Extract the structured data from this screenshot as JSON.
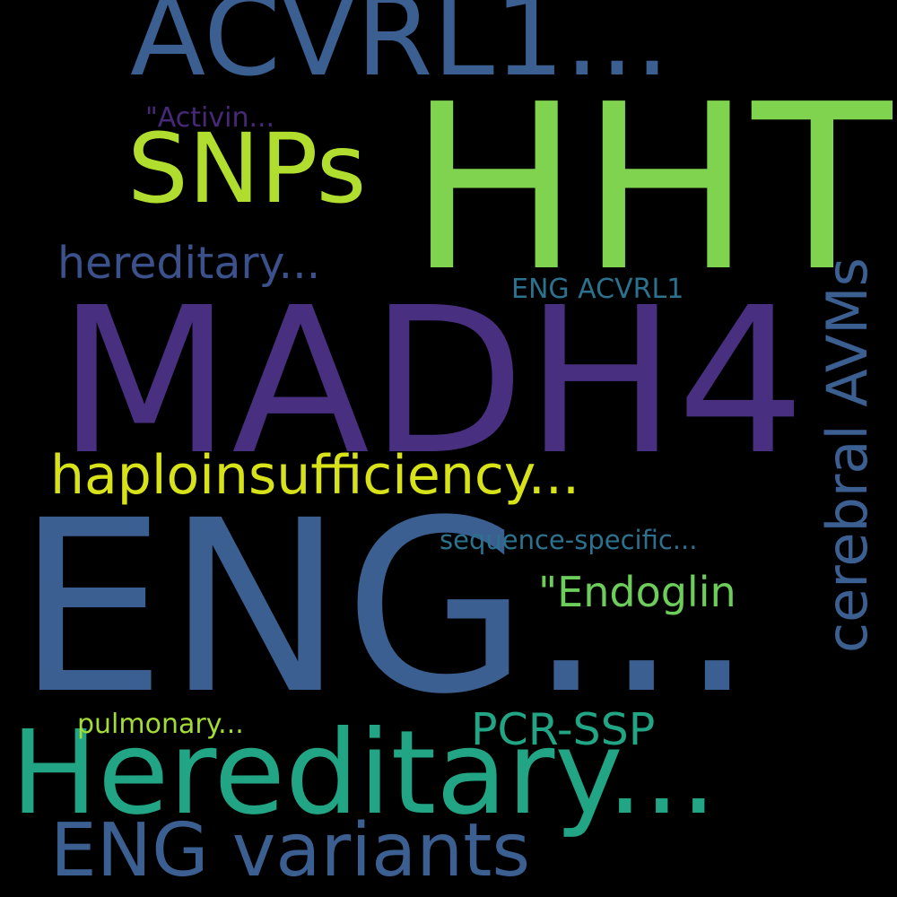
{
  "words": [
    {
      "text": "ENG...",
      "color": "#3b5f91"
    },
    {
      "text": "MADH4",
      "color": "#482f7f"
    },
    {
      "text": "HHT",
      "color": "#7fd34e"
    },
    {
      "text": "Hereditary...",
      "color": "#22a584"
    },
    {
      "text": "ACVRL1...",
      "color": "#3b5f91"
    },
    {
      "text": "SNPs",
      "color": "#b1de2e"
    },
    {
      "text": "ENG variants",
      "color": "#3b5f91"
    },
    {
      "text": "haploinsufficiency...",
      "color": "#d7e219"
    },
    {
      "text": "cerebral AVMs",
      "color": "#3b5f91"
    },
    {
      "text": "hereditary...",
      "color": "#3b518b"
    },
    {
      "text": "\"Endoglin",
      "color": "#6ccd5a"
    },
    {
      "text": "PCR-SSP",
      "color": "#22a584"
    },
    {
      "text": "sequence-specific...",
      "color": "#2c728e"
    },
    {
      "text": "ENG ACVRL1",
      "color": "#2c728e"
    },
    {
      "text": "pulmonary...",
      "color": "#a5db36"
    },
    {
      "text": "\"Activin...",
      "color": "#482878"
    }
  ]
}
